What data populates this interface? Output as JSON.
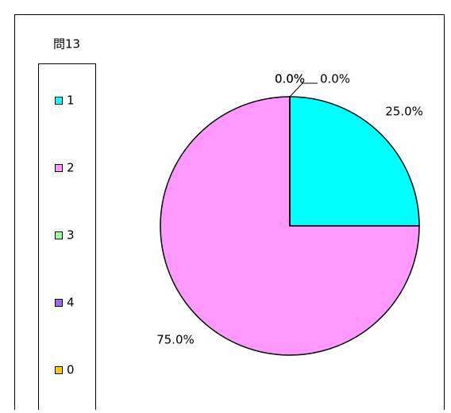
{
  "chart_data": {
    "type": "pie",
    "title": "問13",
    "categories": [
      "1",
      "2",
      "3",
      "4",
      "0"
    ],
    "values": [
      25,
      75,
      0,
      0,
      0
    ],
    "value_labels": [
      "25.0%",
      "75.0%",
      "0.0%",
      "0.0%",
      "0.0%"
    ],
    "colors": [
      "#00ffff",
      "#ff99ff",
      "#99ff99",
      "#9966ff",
      "#ffcc00"
    ],
    "legend": "left"
  }
}
